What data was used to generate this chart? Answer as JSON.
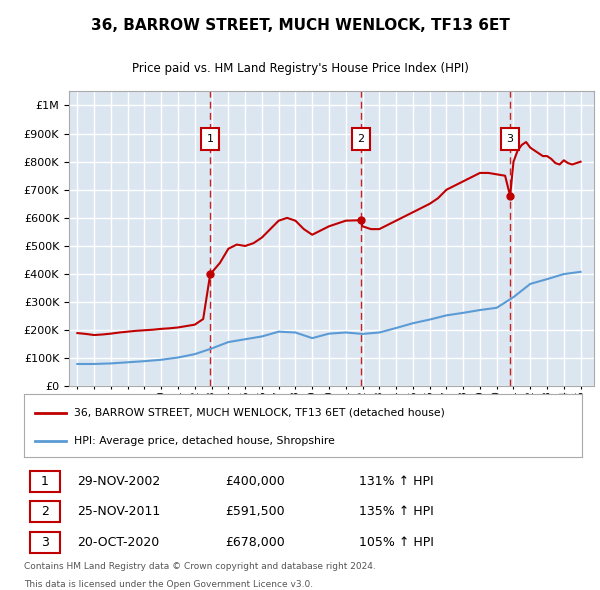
{
  "title": "36, BARROW STREET, MUCH WENLOCK, TF13 6ET",
  "subtitle": "Price paid vs. HM Land Registry's House Price Index (HPI)",
  "legend_line1": "36, BARROW STREET, MUCH WENLOCK, TF13 6ET (detached house)",
  "legend_line2": "HPI: Average price, detached house, Shropshire",
  "footnote1": "Contains HM Land Registry data © Crown copyright and database right 2024.",
  "footnote2": "This data is licensed under the Open Government Licence v3.0.",
  "transactions": [
    {
      "num": 1,
      "date": "29-NOV-2002",
      "price": 400000,
      "price_str": "£400,000",
      "hpi_pct": "131% ↑ HPI",
      "x_year": 2002.92
    },
    {
      "num": 2,
      "date": "25-NOV-2011",
      "price": 591500,
      "price_str": "£591,500",
      "hpi_pct": "135% ↑ HPI",
      "x_year": 2011.9
    },
    {
      "num": 3,
      "date": "20-OCT-2020",
      "price": 678000,
      "price_str": "£678,000",
      "hpi_pct": "105% ↑ HPI",
      "x_year": 2020.8
    }
  ],
  "ylim": [
    0,
    1050000
  ],
  "xlim_left": 1994.5,
  "xlim_right": 2025.8,
  "bg_color": "#dce6f1",
  "red_line_color": "#c00000",
  "blue_line_color": "#5b9bd5",
  "dashed_line_color": "#c00000",
  "grid_color": "#ffffff",
  "hpi_red_line": [
    [
      1995.0,
      190000
    ],
    [
      1995.5,
      187000
    ],
    [
      1996.0,
      183000
    ],
    [
      1996.5,
      185000
    ],
    [
      1997.0,
      188000
    ],
    [
      1997.5,
      192000
    ],
    [
      1998.0,
      195000
    ],
    [
      1998.5,
      198000
    ],
    [
      1999.0,
      200000
    ],
    [
      1999.5,
      202000
    ],
    [
      2000.0,
      205000
    ],
    [
      2000.5,
      207000
    ],
    [
      2001.0,
      210000
    ],
    [
      2001.5,
      215000
    ],
    [
      2002.0,
      220000
    ],
    [
      2002.5,
      240000
    ],
    [
      2002.92,
      400000
    ],
    [
      2003.0,
      405000
    ],
    [
      2003.5,
      440000
    ],
    [
      2004.0,
      490000
    ],
    [
      2004.5,
      505000
    ],
    [
      2005.0,
      500000
    ],
    [
      2005.5,
      510000
    ],
    [
      2006.0,
      530000
    ],
    [
      2006.5,
      560000
    ],
    [
      2007.0,
      590000
    ],
    [
      2007.5,
      600000
    ],
    [
      2008.0,
      590000
    ],
    [
      2008.5,
      560000
    ],
    [
      2009.0,
      540000
    ],
    [
      2009.5,
      555000
    ],
    [
      2010.0,
      570000
    ],
    [
      2010.5,
      580000
    ],
    [
      2011.0,
      590000
    ],
    [
      2011.5,
      591000
    ],
    [
      2011.9,
      591500
    ],
    [
      2012.0,
      570000
    ],
    [
      2012.5,
      560000
    ],
    [
      2013.0,
      560000
    ],
    [
      2013.5,
      575000
    ],
    [
      2014.0,
      590000
    ],
    [
      2014.5,
      605000
    ],
    [
      2015.0,
      620000
    ],
    [
      2015.5,
      635000
    ],
    [
      2016.0,
      650000
    ],
    [
      2016.5,
      670000
    ],
    [
      2017.0,
      700000
    ],
    [
      2017.5,
      715000
    ],
    [
      2018.0,
      730000
    ],
    [
      2018.5,
      745000
    ],
    [
      2019.0,
      760000
    ],
    [
      2019.5,
      760000
    ],
    [
      2020.0,
      755000
    ],
    [
      2020.5,
      750000
    ],
    [
      2020.8,
      678000
    ],
    [
      2021.0,
      800000
    ],
    [
      2021.25,
      840000
    ],
    [
      2021.5,
      860000
    ],
    [
      2021.75,
      870000
    ],
    [
      2022.0,
      850000
    ],
    [
      2022.25,
      840000
    ],
    [
      2022.5,
      830000
    ],
    [
      2022.75,
      820000
    ],
    [
      2023.0,
      820000
    ],
    [
      2023.25,
      810000
    ],
    [
      2023.5,
      795000
    ],
    [
      2023.75,
      790000
    ],
    [
      2024.0,
      805000
    ],
    [
      2024.25,
      795000
    ],
    [
      2024.5,
      790000
    ],
    [
      2024.75,
      795000
    ],
    [
      2025.0,
      800000
    ]
  ],
  "hpi_blue_line": [
    [
      1995.0,
      80000
    ],
    [
      1996.0,
      80000
    ],
    [
      1997.0,
      82000
    ],
    [
      1998.0,
      86000
    ],
    [
      1999.0,
      90000
    ],
    [
      2000.0,
      95000
    ],
    [
      2001.0,
      103000
    ],
    [
      2002.0,
      115000
    ],
    [
      2003.0,
      135000
    ],
    [
      2004.0,
      158000
    ],
    [
      2005.0,
      168000
    ],
    [
      2006.0,
      178000
    ],
    [
      2007.0,
      195000
    ],
    [
      2008.0,
      192000
    ],
    [
      2009.0,
      172000
    ],
    [
      2010.0,
      188000
    ],
    [
      2011.0,
      192000
    ],
    [
      2012.0,
      187000
    ],
    [
      2013.0,
      192000
    ],
    [
      2014.0,
      208000
    ],
    [
      2015.0,
      225000
    ],
    [
      2016.0,
      238000
    ],
    [
      2017.0,
      253000
    ],
    [
      2018.0,
      262000
    ],
    [
      2019.0,
      272000
    ],
    [
      2020.0,
      280000
    ],
    [
      2021.0,
      318000
    ],
    [
      2022.0,
      365000
    ],
    [
      2023.0,
      382000
    ],
    [
      2024.0,
      400000
    ],
    [
      2025.0,
      408000
    ]
  ]
}
